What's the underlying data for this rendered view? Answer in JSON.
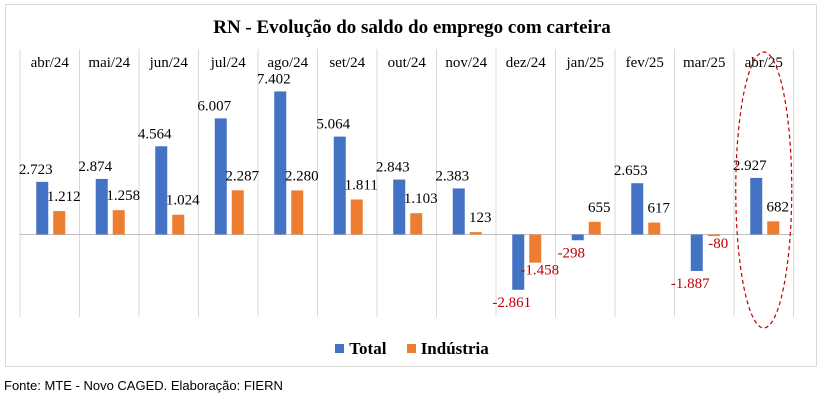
{
  "colors": {
    "total": "#4472C4",
    "industria": "#ED7D31",
    "negative_label": "#C00000",
    "highlight": "#C00000"
  },
  "source": "Fonte: MTE -  Novo CAGED. Elaboração: FIERN",
  "chart_data": {
    "type": "bar",
    "title": "RN - Evolução do saldo do emprego com carteira",
    "categories": [
      "abr/24",
      "mai/24",
      "jun/24",
      "jul/24",
      "ago/24",
      "set/24",
      "out/24",
      "nov/24",
      "dez/24",
      "jan/25",
      "fev/25",
      "mar/25",
      "abr/25"
    ],
    "series": [
      {
        "name": "Total",
        "values": [
          2723,
          2874,
          4564,
          6007,
          7402,
          5064,
          2843,
          2383,
          -2861,
          -298,
          2653,
          -1887,
          2927
        ],
        "labels": [
          "2.723",
          "2.874",
          "4.564",
          "6.007",
          "7.402",
          "5.064",
          "2.843",
          "2.383",
          "-2.861",
          "-298",
          "2.653",
          "-1.887",
          "2.927"
        ]
      },
      {
        "name": "Indústria",
        "values": [
          1212,
          1258,
          1024,
          2287,
          2280,
          1811,
          1103,
          123,
          -1458,
          655,
          617,
          -80,
          682
        ],
        "labels": [
          "1.212",
          "1.258",
          "1.024",
          "2.287",
          "2.280",
          "1.811",
          "1.103",
          "123",
          "-1.458",
          "655",
          "617",
          "-80",
          "682"
        ]
      }
    ],
    "highlighted_category": "abr/25",
    "legend_position": "bottom",
    "grid": false,
    "xlabel": "",
    "ylabel": ""
  }
}
